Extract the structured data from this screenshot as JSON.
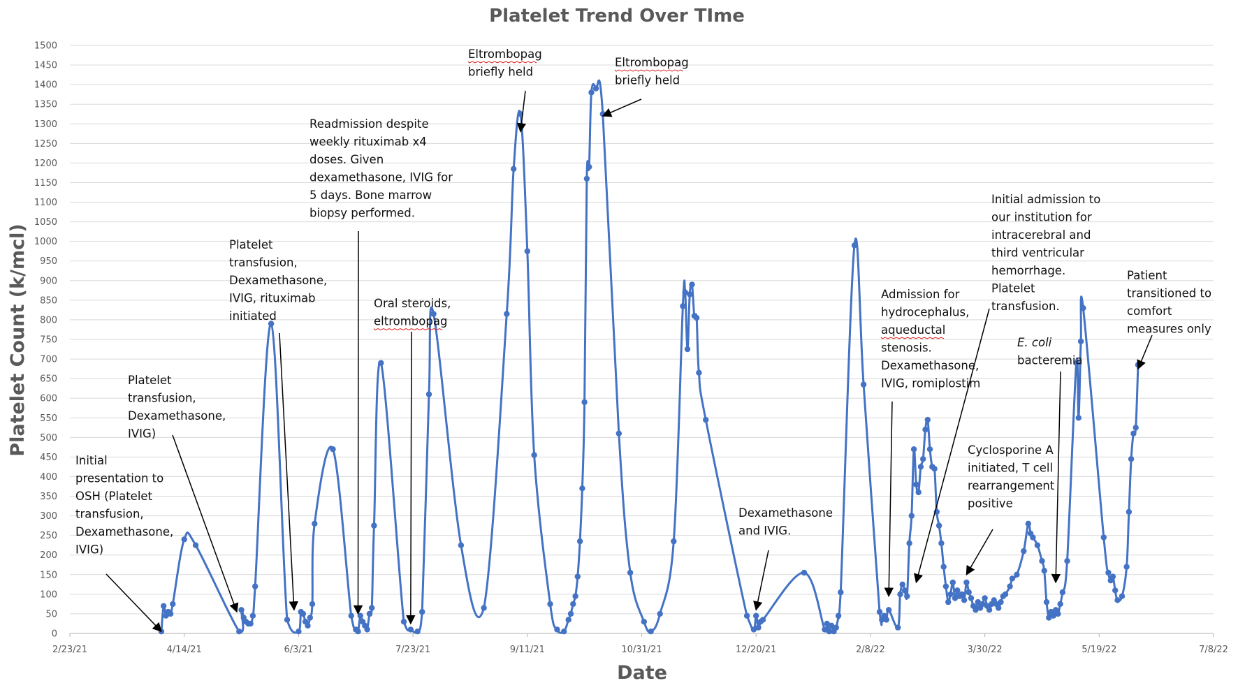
{
  "chart_data": {
    "type": "line",
    "title": "Platelet Trend Over TIme",
    "xlabel": "Date",
    "ylabel": "Platelet Count (k/mcl)",
    "ylim": [
      0,
      1500
    ],
    "ytick_step": 50,
    "x_ticks": [
      "2/23/21",
      "4/14/21",
      "6/3/21",
      "7/23/21",
      "9/11/21",
      "10/31/21",
      "12/20/21",
      "2/8/22",
      "3/30/22",
      "5/19/22",
      "7/8/22"
    ],
    "grid": "horizontal",
    "series_color": "#4472c4",
    "series": [
      {
        "points": [
          [
            "2021-04-04",
            5
          ],
          [
            "2021-04-05",
            70
          ],
          [
            "2021-04-06",
            45
          ],
          [
            "2021-04-07",
            55
          ],
          [
            "2021-04-08",
            50
          ],
          [
            "2021-04-09",
            75
          ],
          [
            "2021-04-14",
            240
          ],
          [
            "2021-04-19",
            225
          ],
          [
            "2021-05-08",
            5
          ],
          [
            "2021-05-09",
            60
          ],
          [
            "2021-05-10",
            40
          ],
          [
            "2021-05-11",
            30
          ],
          [
            "2021-05-12",
            25
          ],
          [
            "2021-05-13",
            25
          ],
          [
            "2021-05-14",
            45
          ],
          [
            "2021-05-15",
            120
          ],
          [
            "2021-05-22",
            790
          ],
          [
            "2021-05-29",
            35
          ],
          [
            "2021-06-03",
            5
          ],
          [
            "2021-06-04",
            55
          ],
          [
            "2021-06-05",
            50
          ],
          [
            "2021-06-06",
            30
          ],
          [
            "2021-06-07",
            20
          ],
          [
            "2021-06-08",
            40
          ],
          [
            "2021-06-09",
            75
          ],
          [
            "2021-06-10",
            280
          ],
          [
            "2021-06-18",
            470
          ],
          [
            "2021-06-26",
            45
          ],
          [
            "2021-06-28",
            10
          ],
          [
            "2021-06-29",
            5
          ],
          [
            "2021-06-30",
            45
          ],
          [
            "2021-07-01",
            30
          ],
          [
            "2021-07-02",
            20
          ],
          [
            "2021-07-03",
            10
          ],
          [
            "2021-07-04",
            50
          ],
          [
            "2021-07-05",
            65
          ],
          [
            "2021-07-06",
            275
          ],
          [
            "2021-07-09",
            690
          ],
          [
            "2021-07-19",
            30
          ],
          [
            "2021-07-22",
            10
          ],
          [
            "2021-07-25",
            5
          ],
          [
            "2021-07-27",
            55
          ],
          [
            "2021-07-30",
            610
          ],
          [
            "2021-08-01",
            815
          ],
          [
            "2021-08-13",
            225
          ],
          [
            "2021-08-23",
            65
          ],
          [
            "2021-09-02",
            815
          ],
          [
            "2021-09-05",
            1185
          ],
          [
            "2021-09-08",
            1325
          ],
          [
            "2021-09-11",
            975
          ],
          [
            "2021-09-14",
            455
          ],
          [
            "2021-09-21",
            75
          ],
          [
            "2021-09-24",
            10
          ],
          [
            "2021-09-27",
            5
          ],
          [
            "2021-09-29",
            35
          ],
          [
            "2021-09-30",
            50
          ],
          [
            "2021-10-01",
            75
          ],
          [
            "2021-10-02",
            95
          ],
          [
            "2021-10-03",
            145
          ],
          [
            "2021-10-04",
            235
          ],
          [
            "2021-10-05",
            370
          ],
          [
            "2021-10-06",
            590
          ],
          [
            "2021-10-07",
            1160
          ],
          [
            "2021-10-08",
            1190
          ],
          [
            "2021-10-09",
            1380
          ],
          [
            "2021-10-11",
            1390
          ],
          [
            "2021-10-14",
            1325
          ],
          [
            "2021-10-21",
            510
          ],
          [
            "2021-10-26",
            155
          ],
          [
            "2021-11-01",
            30
          ],
          [
            "2021-11-04",
            5
          ],
          [
            "2021-11-08",
            50
          ],
          [
            "2021-11-14",
            235
          ],
          [
            "2021-11-18",
            835
          ],
          [
            "2021-11-19",
            870
          ],
          [
            "2021-11-20",
            725
          ],
          [
            "2021-11-21",
            865
          ],
          [
            "2021-11-22",
            890
          ],
          [
            "2021-11-23",
            810
          ],
          [
            "2021-11-24",
            805
          ],
          [
            "2021-11-25",
            665
          ],
          [
            "2021-11-28",
            545
          ],
          [
            "2021-12-16",
            45
          ],
          [
            "2021-12-19",
            10
          ],
          [
            "2021-12-20",
            45
          ],
          [
            "2021-12-21",
            15
          ],
          [
            "2021-12-22",
            30
          ],
          [
            "2021-12-23",
            35
          ],
          [
            "2022-01-10",
            155
          ],
          [
            "2022-01-19",
            10
          ],
          [
            "2022-01-20",
            25
          ],
          [
            "2022-01-21",
            5
          ],
          [
            "2022-01-22",
            20
          ],
          [
            "2022-01-23",
            5
          ],
          [
            "2022-01-24",
            15
          ],
          [
            "2022-01-25",
            45
          ],
          [
            "2022-01-26",
            105
          ],
          [
            "2022-02-01",
            990
          ],
          [
            "2022-02-05",
            635
          ],
          [
            "2022-02-12",
            55
          ],
          [
            "2022-02-13",
            35
          ],
          [
            "2022-02-14",
            45
          ],
          [
            "2022-02-15",
            35
          ],
          [
            "2022-02-16",
            60
          ],
          [
            "2022-02-20",
            15
          ],
          [
            "2022-02-21",
            100
          ],
          [
            "2022-02-22",
            125
          ],
          [
            "2022-02-23",
            110
          ],
          [
            "2022-02-24",
            95
          ],
          [
            "2022-02-25",
            230
          ],
          [
            "2022-02-26",
            300
          ],
          [
            "2022-02-27",
            470
          ],
          [
            "2022-02-28",
            380
          ],
          [
            "2022-03-01",
            360
          ],
          [
            "2022-03-02",
            425
          ],
          [
            "2022-03-03",
            445
          ],
          [
            "2022-03-04",
            520
          ],
          [
            "2022-03-05",
            545
          ],
          [
            "2022-03-06",
            470
          ],
          [
            "2022-03-07",
            425
          ],
          [
            "2022-03-08",
            420
          ],
          [
            "2022-03-09",
            310
          ],
          [
            "2022-03-10",
            275
          ],
          [
            "2022-03-11",
            230
          ],
          [
            "2022-03-12",
            170
          ],
          [
            "2022-03-13",
            120
          ],
          [
            "2022-03-14",
            80
          ],
          [
            "2022-03-15",
            100
          ],
          [
            "2022-03-16",
            130
          ],
          [
            "2022-03-17",
            90
          ],
          [
            "2022-03-18",
            110
          ],
          [
            "2022-03-19",
            95
          ],
          [
            "2022-03-20",
            100
          ],
          [
            "2022-03-21",
            85
          ],
          [
            "2022-03-22",
            130
          ],
          [
            "2022-03-23",
            105
          ],
          [
            "2022-03-24",
            90
          ],
          [
            "2022-03-25",
            70
          ],
          [
            "2022-03-26",
            60
          ],
          [
            "2022-03-27",
            80
          ],
          [
            "2022-03-28",
            65
          ],
          [
            "2022-03-29",
            75
          ],
          [
            "2022-03-30",
            90
          ],
          [
            "2022-03-31",
            70
          ],
          [
            "2022-04-01",
            60
          ],
          [
            "2022-04-02",
            75
          ],
          [
            "2022-04-03",
            85
          ],
          [
            "2022-04-04",
            75
          ],
          [
            "2022-04-05",
            65
          ],
          [
            "2022-04-06",
            80
          ],
          [
            "2022-04-07",
            95
          ],
          [
            "2022-04-08",
            100
          ],
          [
            "2022-04-10",
            120
          ],
          [
            "2022-04-11",
            140
          ],
          [
            "2022-04-13",
            150
          ],
          [
            "2022-04-16",
            210
          ],
          [
            "2022-04-18",
            280
          ],
          [
            "2022-04-19",
            255
          ],
          [
            "2022-04-20",
            245
          ],
          [
            "2022-04-22",
            225
          ],
          [
            "2022-04-24",
            185
          ],
          [
            "2022-04-25",
            160
          ],
          [
            "2022-04-26",
            80
          ],
          [
            "2022-04-27",
            40
          ],
          [
            "2022-04-28",
            55
          ],
          [
            "2022-04-29",
            45
          ],
          [
            "2022-04-30",
            60
          ],
          [
            "2022-05-01",
            50
          ],
          [
            "2022-05-02",
            75
          ],
          [
            "2022-05-03",
            105
          ],
          [
            "2022-05-05",
            185
          ],
          [
            "2022-05-09",
            690
          ],
          [
            "2022-05-10",
            550
          ],
          [
            "2022-05-11",
            745
          ],
          [
            "2022-05-12",
            830
          ],
          [
            "2022-05-21",
            245
          ],
          [
            "2022-05-23",
            155
          ],
          [
            "2022-05-24",
            135
          ],
          [
            "2022-05-25",
            145
          ],
          [
            "2022-05-26",
            110
          ],
          [
            "2022-05-27",
            85
          ],
          [
            "2022-05-29",
            95
          ],
          [
            "2022-05-31",
            170
          ],
          [
            "2022-06-01",
            310
          ],
          [
            "2022-06-02",
            445
          ],
          [
            "2022-06-03",
            510
          ],
          [
            "2022-06-04",
            525
          ],
          [
            "2022-06-05",
            685
          ]
        ]
      }
    ],
    "annotations": [
      {
        "lines": [
          "Initial",
          "presentation to",
          "OSH (Platelet",
          "transfusion,",
          "Dexamethasone,",
          "IVIG)"
        ],
        "target_date": "2021-04-04",
        "target_value": 5
      },
      {
        "lines": [
          "Platelet",
          "transfusion,",
          "Dexamethasone,",
          "IVIG)"
        ],
        "target_date": "2021-05-07",
        "target_value": 55
      },
      {
        "lines": [
          "Platelet",
          "transfusion,",
          "Dexamethasone,",
          "IVIG, rituximab",
          "initiated"
        ],
        "target_date": "2021-06-01",
        "target_value": 60
      },
      {
        "lines": [
          "Readmission despite",
          "weekly rituximab x4",
          "doses. Given",
          "dexamethasone, IVIG for",
          "5 days. Bone marrow",
          "biopsy performed."
        ],
        "target_date": "2021-06-29",
        "target_value": 50
      },
      {
        "lines": [
          "Oral steroids,",
          "eltrombopag"
        ],
        "target_date": "2021-07-22",
        "target_value": 25
      },
      {
        "lines": [
          "Eltrombopag",
          "briefly held"
        ],
        "target_date": "2021-09-08",
        "target_value": 1280
      },
      {
        "lines": [
          "Eltrombopag",
          "briefly held"
        ],
        "target_date": "2021-10-14",
        "target_value": 1320
      },
      {
        "lines": [
          "Dexamethasone",
          "and IVIG."
        ],
        "target_date": "2021-12-20",
        "target_value": 60
      },
      {
        "lines": [
          "Admission for",
          "hydrocephalus,",
          "aqueductal",
          "stenosis.",
          "Dexamethasone,",
          "IVIG, romiplostim"
        ],
        "target_date": "2022-02-16",
        "target_value": 95
      },
      {
        "lines": [
          "Initial admission to",
          "our institution for",
          "intracerebral and",
          "third ventricular",
          "hemorrhage.",
          "Platelet",
          "transfusion."
        ],
        "target_date": "2022-02-28",
        "target_value": 130
      },
      {
        "lines": [
          "E. coli",
          "bacteremia"
        ],
        "target_date": "2022-04-30",
        "target_value": 130
      },
      {
        "lines": [
          "Cyclosporine A",
          "initiated, T cell",
          "rearrangement",
          "positive"
        ],
        "target_date": "2022-03-22",
        "target_value": 150
      },
      {
        "lines": [
          "Patient",
          "transitioned to",
          "comfort",
          "measures only"
        ],
        "target_date": "2022-06-05",
        "target_value": 675
      }
    ]
  }
}
